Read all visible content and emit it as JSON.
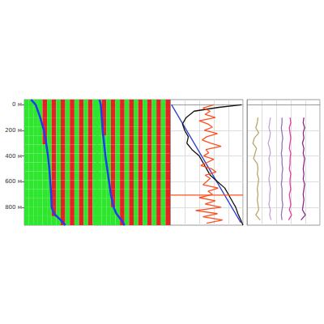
{
  "chart_data": [
    {
      "type": "wavefield",
      "tick_labels": "y",
      "grid": false,
      "xlim": [
        0,
        16
      ],
      "ylim": [
        -40,
        940
      ],
      "yticks": [
        {
          "value": 0,
          "label": "0 м"
        },
        {
          "value": 200,
          "label": "200 м"
        },
        {
          "value": 400,
          "label": "400 м"
        },
        {
          "value": 600,
          "label": "600 м"
        },
        {
          "value": 800,
          "label": "800 м"
        }
      ],
      "cells": {
        "x_edges": [
          0,
          1,
          2,
          3,
          4,
          5,
          6,
          7,
          8,
          9,
          10,
          11,
          12,
          13,
          14,
          15,
          16
        ],
        "depth_edges": [
          -40,
          30,
          100,
          170,
          240,
          310,
          380,
          450,
          520,
          590,
          660,
          730,
          800,
          870,
          940
        ],
        "colors": [
          "#2ee62e",
          "#e42222"
        ],
        "values": [
          [
            0,
            0,
            0,
            0,
            1,
            0,
            1,
            0,
            1,
            0,
            1,
            0,
            1,
            0,
            1,
            0
          ],
          [
            0,
            0,
            0,
            0,
            1,
            0,
            1,
            0,
            1,
            0,
            1,
            0,
            1,
            0,
            1,
            0
          ],
          [
            0,
            0,
            0,
            0,
            1,
            0,
            1,
            0,
            1,
            0,
            1,
            0,
            1,
            0,
            1,
            0
          ],
          [
            0,
            0,
            0,
            0,
            1,
            0,
            1,
            0,
            1,
            0,
            1,
            0,
            1,
            0,
            1,
            0
          ],
          [
            0,
            0,
            0,
            0,
            1,
            0,
            1,
            0,
            1,
            0,
            1,
            0,
            1,
            0,
            1,
            0
          ],
          [
            0,
            0,
            0,
            0,
            0,
            0,
            1,
            0,
            1,
            0,
            1,
            0,
            1,
            0,
            1,
            0
          ],
          [
            0,
            0,
            0,
            0,
            0,
            0,
            1,
            0,
            1,
            0,
            1,
            0,
            1,
            0,
            1,
            0
          ],
          [
            0,
            0,
            0,
            0,
            0,
            0,
            1,
            0,
            1,
            0,
            1,
            0,
            1,
            0,
            1,
            0
          ],
          [
            0,
            0,
            0,
            0,
            0,
            0,
            1,
            0,
            1,
            0,
            1,
            0,
            1,
            0,
            1,
            0
          ],
          [
            0,
            0,
            0,
            0,
            0,
            0,
            1,
            0,
            1,
            0,
            1,
            0,
            1,
            0,
            1,
            0
          ],
          [
            0,
            0,
            0,
            0,
            0,
            0,
            1,
            0,
            1,
            0,
            1,
            0,
            1,
            0,
            1,
            0
          ],
          [
            0,
            0,
            0,
            0,
            0,
            0,
            1,
            0,
            1,
            0,
            1,
            0,
            1,
            0,
            1,
            0
          ],
          [
            0,
            0,
            0,
            0,
            0,
            0,
            1,
            0,
            1,
            0,
            1,
            0,
            1,
            0,
            1,
            0
          ],
          [
            0,
            0,
            0,
            0,
            0,
            0,
            0,
            0,
            1,
            0,
            1,
            0,
            1,
            0,
            1,
            0
          ]
        ]
      },
      "series": [
        {
          "color": "#1f3cf0",
          "depth": [
            -40,
            0,
            100,
            200,
            300,
            400,
            500,
            600,
            700,
            800,
            850,
            900,
            940
          ],
          "values": [
            1.5,
            2.5,
            3.5,
            4.3,
            4.8,
            5.2,
            5.5,
            5.7,
            5.9,
            6.0,
            6.5,
            8,
            9
          ]
        }
      ]
    },
    {
      "type": "wavefield",
      "tick_labels": false,
      "grid": false,
      "xlim": [
        0,
        16
      ],
      "ylim": [
        -40,
        940
      ],
      "yticks": [
        {
          "value": 0,
          "label": "0 м"
        },
        {
          "value": 200,
          "label": "200 м"
        },
        {
          "value": 400,
          "label": "400 м"
        },
        {
          "value": 600,
          "label": "600 м"
        },
        {
          "value": 800,
          "label": "800 м"
        }
      ],
      "cells": {
        "x_edges": [
          0,
          1,
          2,
          3,
          4,
          5,
          6,
          7,
          8,
          9,
          10,
          11,
          12,
          13,
          14,
          15,
          16
        ],
        "depth_edges": [
          -40,
          30,
          100,
          170,
          240,
          310,
          380,
          450,
          520,
          590,
          660,
          730,
          800,
          870,
          940
        ],
        "colors": [
          "#2ee62e",
          "#e42222"
        ],
        "values": [
          [
            0,
            1,
            0,
            1,
            0,
            1,
            0,
            1,
            0,
            1,
            0,
            1,
            0,
            1,
            0,
            1
          ],
          [
            0,
            1,
            0,
            1,
            0,
            1,
            0,
            1,
            0,
            1,
            0,
            1,
            0,
            1,
            0,
            1
          ],
          [
            0,
            1,
            0,
            1,
            0,
            1,
            0,
            1,
            0,
            1,
            0,
            1,
            0,
            1,
            0,
            1
          ],
          [
            0,
            1,
            0,
            1,
            0,
            1,
            0,
            1,
            0,
            1,
            0,
            1,
            0,
            1,
            0,
            1
          ],
          [
            0,
            0,
            0,
            1,
            0,
            1,
            0,
            1,
            0,
            1,
            0,
            1,
            0,
            1,
            0,
            1
          ],
          [
            0,
            0,
            0,
            1,
            0,
            1,
            0,
            1,
            0,
            1,
            0,
            1,
            0,
            1,
            0,
            1
          ],
          [
            0,
            0,
            0,
            1,
            0,
            1,
            0,
            1,
            0,
            1,
            0,
            1,
            0,
            1,
            0,
            1
          ],
          [
            0,
            0,
            0,
            1,
            0,
            1,
            0,
            1,
            0,
            1,
            0,
            1,
            0,
            1,
            0,
            1
          ],
          [
            0,
            0,
            0,
            1,
            0,
            1,
            0,
            1,
            0,
            1,
            0,
            1,
            0,
            1,
            0,
            1
          ],
          [
            0,
            0,
            0,
            1,
            0,
            1,
            0,
            1,
            0,
            1,
            0,
            1,
            0,
            1,
            0,
            1
          ],
          [
            0,
            0,
            0,
            1,
            0,
            1,
            0,
            1,
            0,
            1,
            0,
            1,
            0,
            1,
            0,
            1
          ],
          [
            0,
            0,
            0,
            1,
            0,
            1,
            0,
            1,
            0,
            1,
            0,
            1,
            0,
            1,
            0,
            1
          ],
          [
            0,
            0,
            0,
            0,
            0,
            1,
            0,
            1,
            0,
            1,
            0,
            1,
            0,
            1,
            0,
            1
          ],
          [
            0,
            0,
            0,
            0,
            0,
            1,
            0,
            1,
            0,
            1,
            0,
            1,
            0,
            1,
            0,
            1
          ]
        ]
      },
      "series": [
        {
          "color": "#1f3cf0",
          "depth": [
            -40,
            0,
            200,
            400,
            600,
            700,
            800,
            850,
            900,
            940
          ],
          "values": [
            0.5,
            0.8,
            1.2,
            1.8,
            2.6,
            3,
            3.6,
            4.2,
            5.3,
            6
          ]
        }
      ]
    },
    {
      "type": "line",
      "tick_labels": false,
      "grid": true,
      "xlim": [
        0,
        100
      ],
      "xticks": [
        0,
        20,
        40,
        60,
        80,
        100
      ],
      "ylim": [
        -40,
        940
      ],
      "yticks": [
        {
          "value": 0,
          "label": "0 м"
        },
        {
          "value": 200,
          "label": "200 м"
        },
        {
          "value": 400,
          "label": "400 м"
        },
        {
          "value": 600,
          "label": "600 м"
        },
        {
          "value": 800,
          "label": "800 м"
        }
      ],
      "series": [
        {
          "color": "#2a3fd0",
          "depth": [
            0,
            920
          ],
          "values": [
            2,
            97
          ]
        },
        {
          "color": "#111111",
          "depth": [
            0,
            20,
            50,
            100,
            150,
            200,
            250,
            300,
            350,
            400,
            450,
            500,
            550,
            600,
            650,
            700,
            750,
            800,
            850,
            900,
            940
          ],
          "values": [
            98,
            67,
            33,
            22,
            17,
            20,
            25,
            23,
            30,
            40,
            45,
            50,
            55,
            65,
            75,
            80,
            85,
            90,
            93,
            97,
            100
          ]
        },
        {
          "color": "#ff5020",
          "depth": [
            0,
            25,
            50,
            75,
            100,
            125,
            150,
            175,
            200,
            225,
            250,
            275,
            300,
            325,
            350,
            375,
            400,
            425,
            450,
            475,
            500,
            525,
            550,
            575,
            600,
            625,
            650,
            675,
            700,
            725,
            750,
            775,
            800,
            825,
            850,
            875,
            900,
            925
          ],
          "values": [
            60,
            45,
            55,
            48,
            62,
            40,
            52,
            58,
            47,
            65,
            50,
            44,
            56,
            70,
            49,
            53,
            46,
            60,
            51,
            42,
            57,
            63,
            48,
            55,
            50,
            45,
            66,
            52,
            58,
            40,
            62,
            48,
            70,
            35,
            65,
            45,
            72,
            50
          ]
        },
        {
          "color": "#ff5020",
          "depth": [
            705,
            705
          ],
          "values": [
            0,
            100
          ]
        }
      ]
    },
    {
      "type": "line",
      "tick_labels": false,
      "grid": true,
      "xlim": [
        0,
        100
      ],
      "xticks": [
        0,
        20,
        40,
        60,
        80,
        100
      ],
      "ylim": [
        -40,
        940
      ],
      "yticks": [
        {
          "value": 0,
          "label": "0 м"
        },
        {
          "value": 200,
          "label": "200 м"
        },
        {
          "value": 400,
          "label": "400 м"
        },
        {
          "value": 600,
          "label": "600 м"
        },
        {
          "value": 800,
          "label": "800 м"
        }
      ],
      "series": [
        {
          "color": "#b5a96a",
          "depth": [
            100,
            140,
            180,
            220,
            260,
            300,
            340,
            380,
            420,
            460,
            500,
            540,
            580,
            620,
            660,
            700,
            740,
            780,
            820,
            860,
            900
          ],
          "values": [
            15,
            14,
            12,
            16,
            10,
            8,
            13,
            11,
            9,
            14,
            15,
            14,
            16,
            15,
            14,
            15,
            14,
            15,
            16,
            12,
            18
          ]
        },
        {
          "color": "#c8a0d8",
          "depth": [
            100,
            140,
            180,
            220,
            260,
            300,
            340,
            380,
            420,
            460,
            500,
            540,
            580,
            620,
            660,
            700,
            740,
            780,
            820,
            860,
            900
          ],
          "values": [
            32,
            31,
            30,
            32,
            31,
            29,
            31,
            32,
            30,
            31,
            32,
            31,
            30,
            31,
            32,
            31,
            31,
            30,
            32,
            31,
            33
          ]
        },
        {
          "color": "#9b6fc0",
          "depth": [
            100,
            140,
            180,
            220,
            260,
            300,
            340,
            380,
            420,
            460,
            500,
            540,
            580,
            620,
            660,
            700,
            740,
            780,
            820,
            860,
            900
          ],
          "values": [
            48,
            48,
            47,
            48,
            49,
            48,
            48,
            47,
            48,
            48,
            49,
            48,
            48,
            47,
            48,
            48,
            48,
            49,
            48,
            47,
            48
          ]
        },
        {
          "color": "#e040a0",
          "depth": [
            100,
            140,
            180,
            220,
            260,
            300,
            340,
            380,
            420,
            460,
            500,
            540,
            580,
            620,
            660,
            700,
            740,
            780,
            820,
            860,
            900
          ],
          "values": [
            59,
            60,
            58,
            59,
            60,
            59,
            58,
            60,
            59,
            59,
            58,
            60,
            59,
            59,
            60,
            58,
            59,
            60,
            58,
            61,
            57
          ]
        },
        {
          "color": "#8a2a8a",
          "depth": [
            100,
            140,
            180,
            220,
            260,
            300,
            340,
            380,
            420,
            460,
            500,
            540,
            580,
            620,
            660,
            700,
            740,
            780,
            820,
            860,
            900
          ],
          "values": [
            78,
            77,
            79,
            77,
            78,
            76,
            78,
            77,
            79,
            78,
            77,
            78,
            77,
            79,
            78,
            77,
            78,
            77,
            76,
            80,
            74
          ]
        }
      ]
    }
  ]
}
